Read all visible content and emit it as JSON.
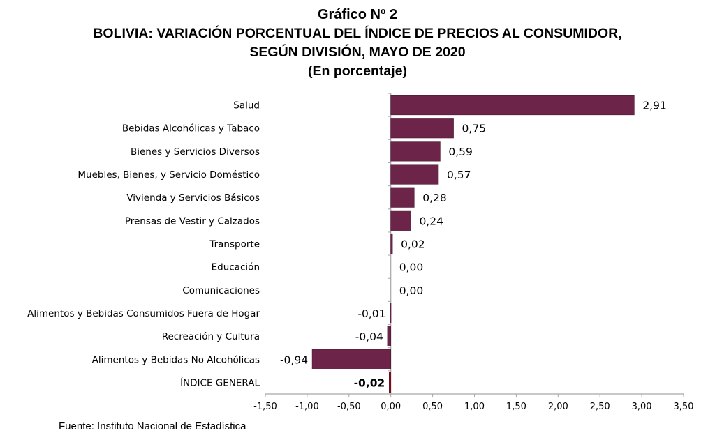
{
  "header": {
    "line1": "Gráfico Nº 2",
    "line2": "BOLIVIA: VARIACIÓN PORCENTUAL DEL ÍNDICE DE PRECIOS AL CONSUMIDOR,",
    "line3": "SEGÚN DIVISIÓN, MAYO DE 2020",
    "line4": "(En porcentaje)"
  },
  "footer": {
    "source": "Fuente: Instituto Nacional de Estadística"
  },
  "chart_data": {
    "type": "bar",
    "orientation": "horizontal",
    "title": "BOLIVIA: VARIACIÓN PORCENTUAL DEL ÍNDICE DE PRECIOS AL CONSUMIDOR, SEGÚN DIVISIÓN, MAYO DE 2020",
    "subtitle": "(En porcentaje)",
    "categories": [
      "Salud",
      "Bebidas Alcohólicas y Tabaco",
      "Bienes y Servicios Diversos",
      "Muebles, Bienes,  y Servicio Doméstico",
      "Vivienda y Servicios Básicos",
      "Prensas de Vestir y Calzados",
      "Transporte",
      "Educación",
      "Comunicaciones",
      "Alimentos y Bebidas Consumidos Fuera de Hogar",
      "Recreación y Cultura",
      "Alimentos y Bebidas No Alcohólicas",
      "ÍNDICE GENERAL"
    ],
    "values": [
      2.91,
      0.75,
      0.59,
      0.57,
      0.28,
      0.24,
      0.02,
      0.0,
      0.0,
      -0.01,
      -0.04,
      -0.94,
      -0.02
    ],
    "value_labels": [
      "2,91",
      "0,75",
      "0,59",
      "0,57",
      "0,28",
      "0,24",
      "0,02",
      "0,00",
      "0,00",
      "-0,01",
      "-0,04",
      "-0,94",
      "-0,02"
    ],
    "highlight_index": 12,
    "xlim": [
      -1.5,
      3.5
    ],
    "xticks": [
      -1.5,
      -1.0,
      -0.5,
      0.0,
      0.5,
      1.0,
      1.5,
      2.0,
      2.5,
      3.0,
      3.5
    ],
    "xtick_labels": [
      "-1,50",
      "-1,00",
      "-0,50",
      "0,00",
      "0,50",
      "1,00",
      "1,50",
      "2,00",
      "2,50",
      "3,00",
      "3,50"
    ],
    "grid": false,
    "legend": "none",
    "colors": {
      "bar": "#6d2449",
      "highlight": "#c00000",
      "axis": "#a6a6a6"
    }
  }
}
